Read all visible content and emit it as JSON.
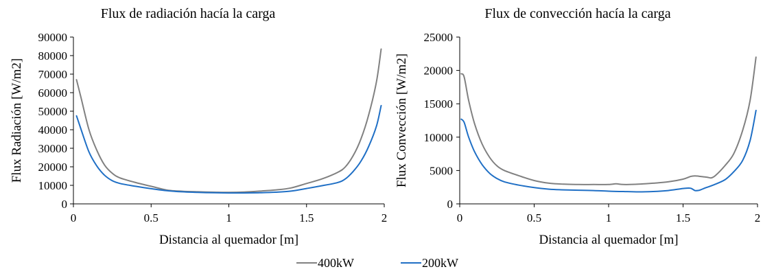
{
  "legend": [
    {
      "name": "400kW",
      "color": "#808080"
    },
    {
      "name": "200kW",
      "color": "#1f6fc5"
    }
  ],
  "chart_data": [
    {
      "type": "line",
      "title": "Flux de radiación hacía la carga",
      "xlabel": "Distancia al quemador [m]",
      "ylabel": "Flux Radiación  [W/m2]",
      "xlim": [
        0,
        2
      ],
      "ylim": [
        0,
        90000
      ],
      "xticks": [
        0,
        0.5,
        1,
        1.5,
        2
      ],
      "xtick_labels": [
        "0",
        "0.5",
        "1",
        "1.5",
        "2"
      ],
      "yticks": [
        0,
        10000,
        20000,
        30000,
        40000,
        50000,
        60000,
        70000,
        80000,
        90000
      ],
      "ytick_labels": [
        "0",
        "10000",
        "20000",
        "30000",
        "40000",
        "50000",
        "60000",
        "70000",
        "80000",
        "90000"
      ],
      "grid": false,
      "series": [
        {
          "name": "400kW",
          "color": "#808080",
          "x": [
            0.02,
            0.05,
            0.1,
            0.15,
            0.2,
            0.25,
            0.3,
            0.4,
            0.5,
            0.6,
            0.7,
            0.8,
            0.9,
            1.0,
            1.1,
            1.2,
            1.3,
            1.4,
            1.5,
            1.6,
            1.7,
            1.75,
            1.8,
            1.85,
            1.9,
            1.95,
            1.98
          ],
          "y": [
            67000,
            57000,
            40000,
            29000,
            21000,
            16500,
            14000,
            11500,
            9500,
            7500,
            6800,
            6500,
            6300,
            6200,
            6400,
            6900,
            7500,
            8600,
            11000,
            13500,
            17000,
            20000,
            26000,
            35000,
            48000,
            66000,
            83500
          ]
        },
        {
          "name": "200kW",
          "color": "#1f6fc5",
          "x": [
            0.02,
            0.05,
            0.1,
            0.15,
            0.2,
            0.25,
            0.3,
            0.4,
            0.5,
            0.6,
            0.7,
            0.8,
            0.9,
            1.0,
            1.1,
            1.2,
            1.3,
            1.4,
            1.5,
            1.6,
            1.7,
            1.75,
            1.8,
            1.85,
            1.9,
            1.95,
            1.98
          ],
          "y": [
            47500,
            40000,
            28000,
            20500,
            15500,
            12500,
            11000,
            9500,
            8200,
            7100,
            6500,
            6200,
            6000,
            5900,
            5900,
            6000,
            6300,
            6900,
            8300,
            9800,
            11500,
            13500,
            17500,
            23000,
            31000,
            42000,
            53000
          ]
        }
      ]
    },
    {
      "type": "line",
      "title": "Flux de convección hacía la carga",
      "xlabel": "Distancia al quemador [m]",
      "ylabel": "Flux Convección  [W/m2]",
      "xlim": [
        0,
        2
      ],
      "ylim": [
        0,
        25000
      ],
      "xticks": [
        0,
        0.5,
        1,
        1.5,
        2
      ],
      "xtick_labels": [
        "0",
        "0.5",
        "1",
        "1.5",
        "2"
      ],
      "yticks": [
        0,
        5000,
        10000,
        15000,
        20000,
        25000
      ],
      "ytick_labels": [
        "0",
        "5000",
        "10000",
        "15000",
        "20000",
        "25000"
      ],
      "grid": false,
      "series": [
        {
          "name": "400kW",
          "color": "#808080",
          "x": [
            0.01,
            0.03,
            0.06,
            0.1,
            0.15,
            0.2,
            0.25,
            0.3,
            0.4,
            0.5,
            0.6,
            0.7,
            0.8,
            0.9,
            1.0,
            1.05,
            1.1,
            1.2,
            1.3,
            1.4,
            1.5,
            1.55,
            1.58,
            1.62,
            1.66,
            1.69,
            1.72,
            1.78,
            1.84,
            1.9,
            1.95,
            1.99
          ],
          "y": [
            19500,
            19000,
            15500,
            12000,
            9000,
            7000,
            5700,
            5000,
            4200,
            3500,
            3100,
            2950,
            2900,
            2900,
            2900,
            3000,
            2900,
            2950,
            3100,
            3300,
            3700,
            4100,
            4200,
            4100,
            4000,
            3900,
            4300,
            5700,
            7500,
            11000,
            15500,
            22000
          ]
        },
        {
          "name": "200kW",
          "color": "#1f6fc5",
          "x": [
            0.01,
            0.03,
            0.06,
            0.1,
            0.15,
            0.2,
            0.25,
            0.3,
            0.4,
            0.5,
            0.6,
            0.7,
            0.8,
            0.9,
            1.0,
            1.1,
            1.2,
            1.3,
            1.4,
            1.5,
            1.55,
            1.58,
            1.61,
            1.65,
            1.7,
            1.78,
            1.84,
            1.9,
            1.95,
            1.99
          ],
          "y": [
            12700,
            12200,
            10000,
            7800,
            5900,
            4600,
            3800,
            3300,
            2800,
            2450,
            2200,
            2100,
            2050,
            2000,
            1900,
            1850,
            1800,
            1850,
            2000,
            2300,
            2350,
            2000,
            2050,
            2400,
            2800,
            3600,
            4800,
            6500,
            9500,
            14000
          ]
        }
      ]
    }
  ]
}
